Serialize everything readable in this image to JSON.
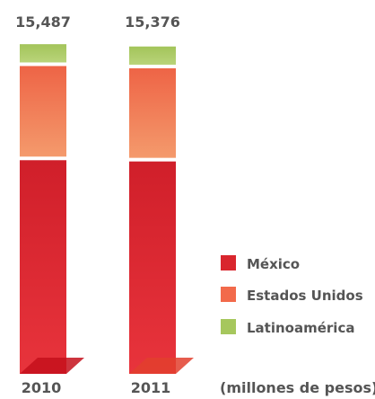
{
  "chart_data": {
    "type": "bar",
    "stacked": true,
    "categories": [
      "2010",
      "2011"
    ],
    "totals": [
      "15,487",
      "15,376"
    ],
    "series": [
      {
        "name": "México",
        "values": [
          10260,
          10200
        ],
        "color": "#d9262e"
      },
      {
        "name": "Estados Unidos",
        "values": [
          4350,
          4300
        ],
        "color": "#f26a4b"
      },
      {
        "name": "Latinoamérica",
        "values": [
          877,
          876
        ],
        "color": "#a6c75d"
      }
    ],
    "unit_note": "(millones de pesos)",
    "legend_position": "right"
  }
}
